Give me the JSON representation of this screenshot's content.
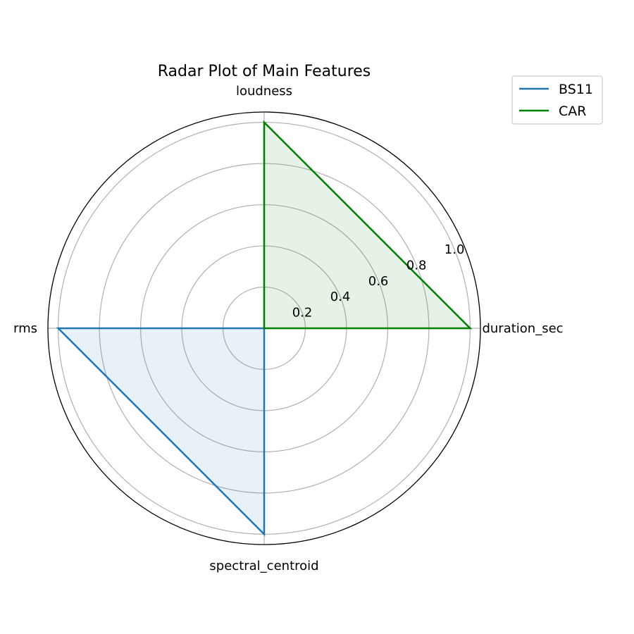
{
  "chart_data": {
    "type": "radar",
    "title": "Radar Plot of Main Features",
    "axes": [
      "duration_sec",
      "loudness",
      "rms",
      "spectral_centroid"
    ],
    "rlim": [
      0,
      1.05
    ],
    "radial_ticks": [
      0.2,
      0.4,
      0.6,
      0.8,
      1.0
    ],
    "radial_tick_labels": [
      "0.2",
      "0.4",
      "0.6",
      "0.8",
      "1.0"
    ],
    "grid": true,
    "legend_position": "top-right",
    "series": [
      {
        "name": "BS11",
        "color": "#1f77b4",
        "values": [
          0,
          0,
          1.0,
          1.0
        ]
      },
      {
        "name": "CAR",
        "color": "#008000",
        "values": [
          1.0,
          1.0,
          0,
          0
        ]
      }
    ]
  }
}
